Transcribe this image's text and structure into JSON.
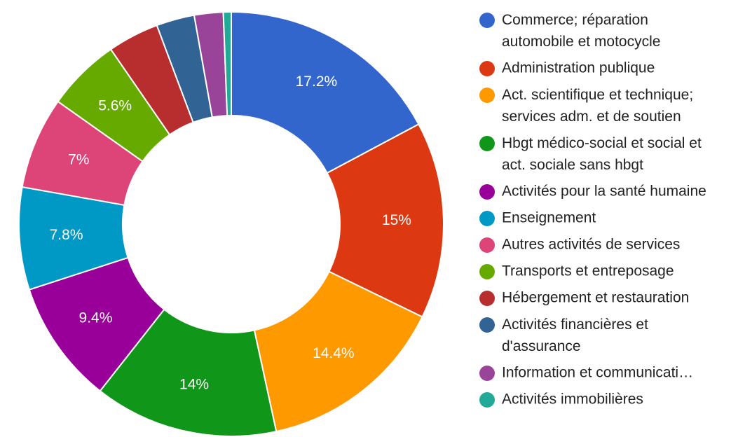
{
  "chart_data": {
    "type": "donut",
    "categories": [
      "Commerce; réparation automobile et motocycle",
      "Administration publique",
      "Act. scientifique et technique; services adm. et de soutien",
      "Hbgt médico-social et social et act. sociale sans hbgt",
      "Activités pour la santé humaine",
      "Enseignement",
      "Autres activités de services",
      "Transports et entreposage",
      "Hébergement et restauration",
      "Activités financières et d'assurance",
      "Information et communicati…",
      "Activités immobilières"
    ],
    "values": [
      17.2,
      15,
      14.4,
      14,
      9.4,
      7.8,
      7,
      5.6,
      3.9,
      2.9,
      2.2,
      0.6
    ],
    "value_labels": [
      "17.2%",
      "15%",
      "14.4%",
      "14%",
      "9.4%",
      "7.8%",
      "7%",
      "5.6%",
      null,
      null,
      null,
      null
    ],
    "colors": [
      "#3366cc",
      "#dc3912",
      "#ff9900",
      "#109618",
      "#990099",
      "#0099c6",
      "#dd4477",
      "#66aa00",
      "#b82e2e",
      "#316395",
      "#994499",
      "#22aa99"
    ],
    "legend": "right"
  }
}
